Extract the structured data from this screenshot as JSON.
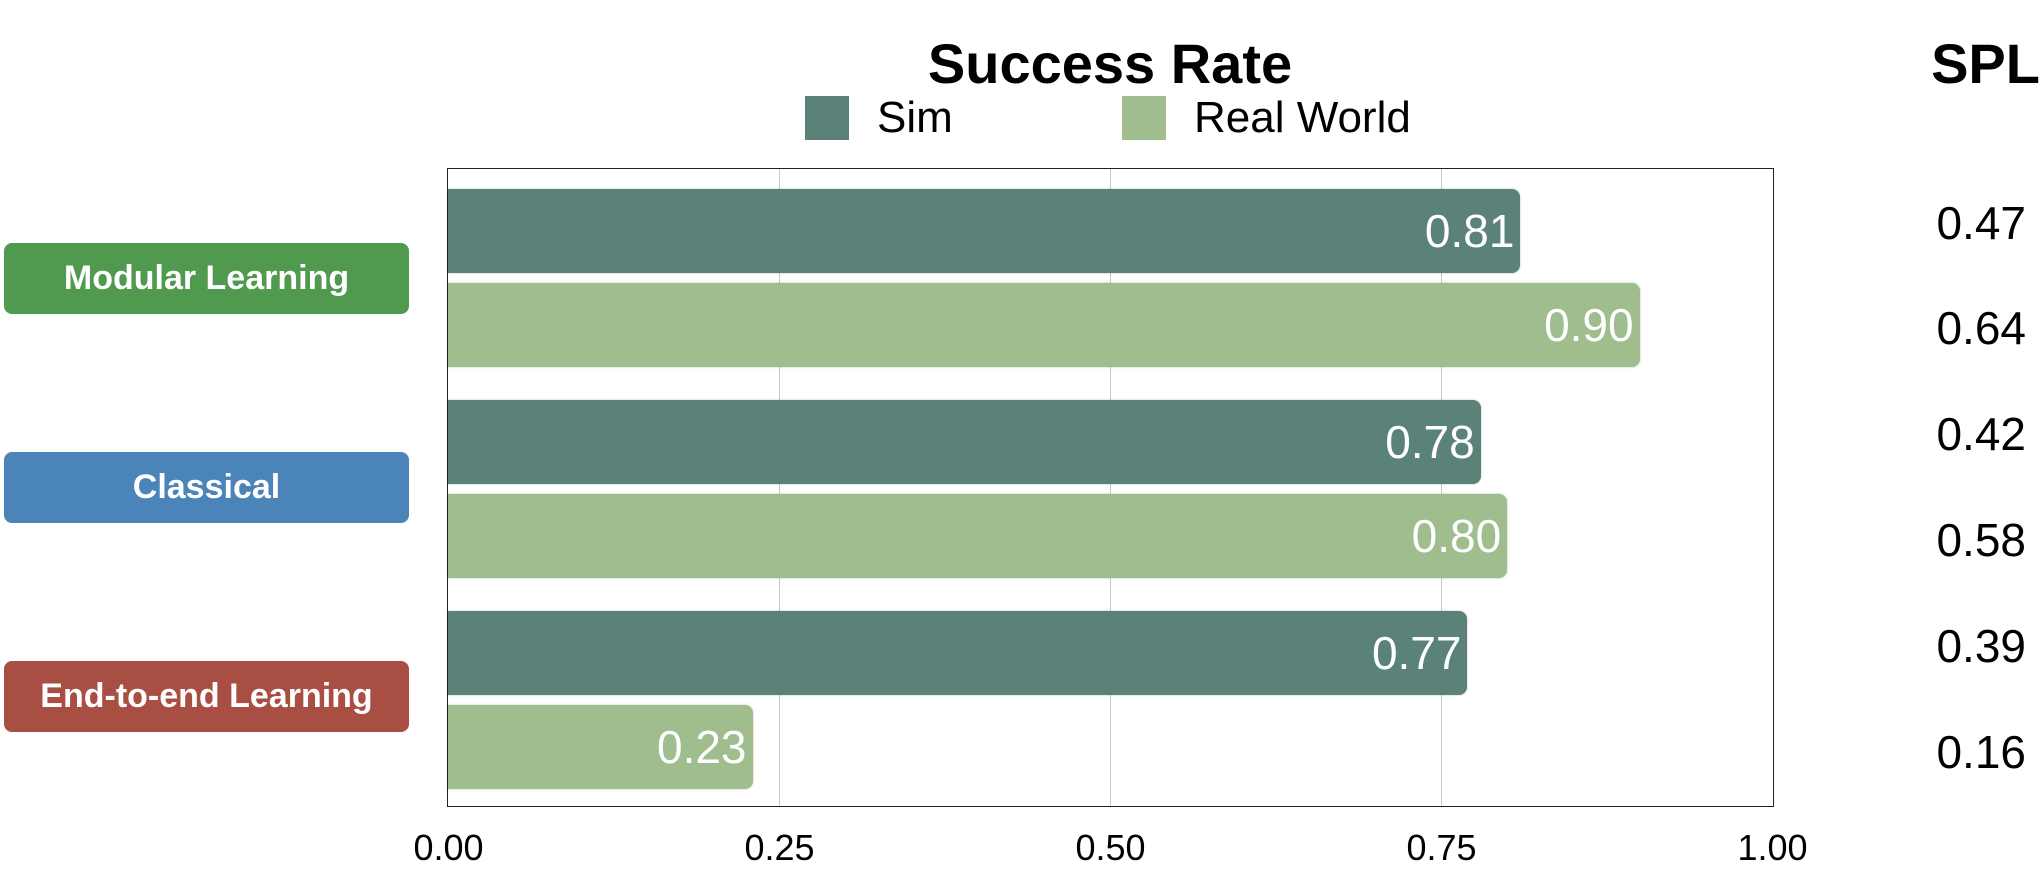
{
  "chart_data": {
    "type": "bar",
    "orientation": "horizontal",
    "title": "Success Rate",
    "categories": [
      "Modular Learning",
      "Classical",
      "End-to-end Learning"
    ],
    "category_colors": [
      "#4f9a4e",
      "#4a84b8",
      "#a84e42"
    ],
    "series": [
      {
        "name": "Sim",
        "color": "#5a8279",
        "values": [
          0.81,
          0.78,
          0.77
        ],
        "labels": [
          "0.81",
          "0.78",
          "0.77"
        ]
      },
      {
        "name": "Real World",
        "color": "#9fbd8d",
        "values": [
          0.9,
          0.8,
          0.23
        ],
        "labels": [
          "0.90",
          "0.80",
          "0.23"
        ]
      }
    ],
    "xlim": [
      0,
      1
    ],
    "xticks": [
      0,
      0.25,
      0.5,
      0.75,
      1
    ],
    "xtick_labels": [
      "0.00",
      "0.25",
      "0.50",
      "0.75",
      "1.00"
    ],
    "grid": true,
    "legend_position": "top",
    "side_table": {
      "header": "SPL",
      "values": [
        "0.47",
        "0.64",
        "0.42",
        "0.58",
        "0.39",
        "0.16"
      ]
    }
  }
}
